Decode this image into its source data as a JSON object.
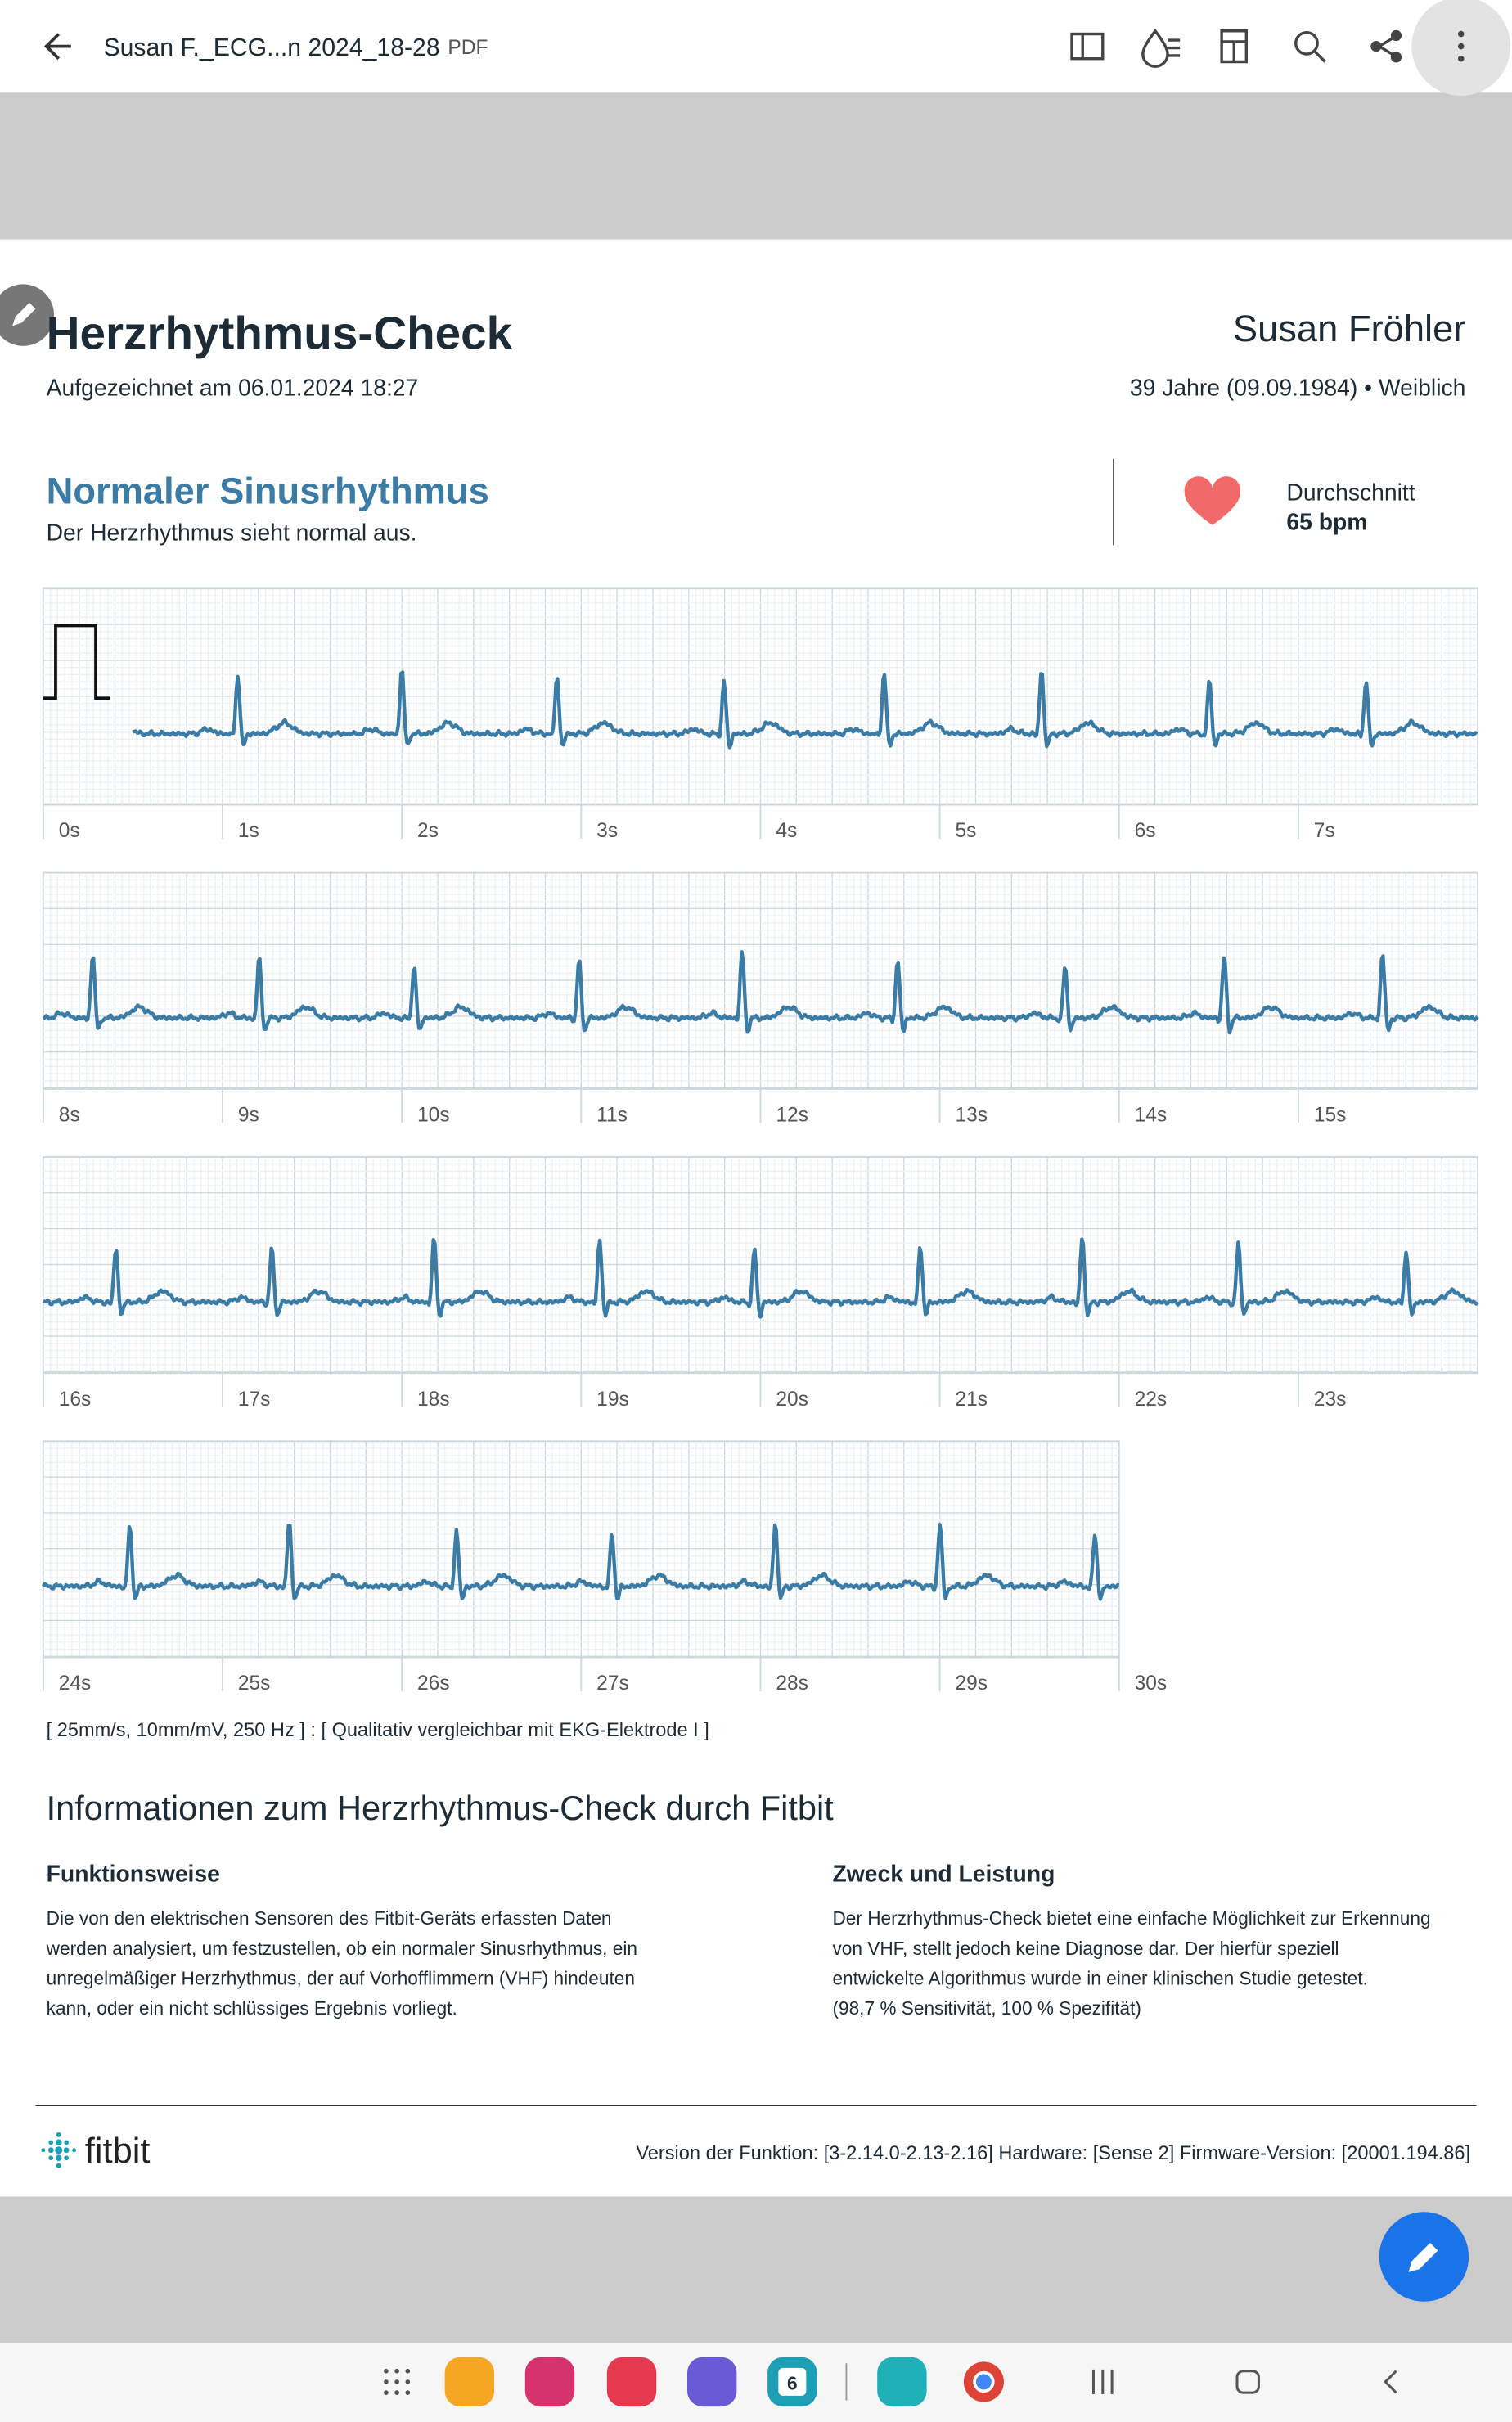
{
  "toolbar": {
    "title": "Susan F._ECG...n 2024_18-28",
    "badge": "PDF"
  },
  "report": {
    "title": "Herzrhythmus-Check",
    "recorded": "Aufgezeichnet am 06.01.2024 18:27",
    "patient_name": "Susan Fröhler",
    "patient_age": "39 Jahre (09.09.1984)",
    "patient_sex": "Weiblich",
    "result_title": "Normaler Sinusrhythmus",
    "result_text": "Der Herzrhythmus sieht normal aus.",
    "avg_label": "Durchschnitt",
    "avg_value": "65 bpm"
  },
  "strips": [
    {
      "labels": [
        "0s",
        "1s",
        "2s",
        "3s",
        "4s",
        "5s",
        "6s",
        "7s"
      ]
    },
    {
      "labels": [
        "8s",
        "9s",
        "10s",
        "11s",
        "12s",
        "13s",
        "14s",
        "15s"
      ]
    },
    {
      "labels": [
        "16s",
        "17s",
        "18s",
        "19s",
        "20s",
        "21s",
        "22s",
        "23s"
      ]
    },
    {
      "labels": [
        "24s",
        "25s",
        "26s",
        "27s",
        "28s",
        "29s",
        "30s"
      ]
    }
  ],
  "caption": "[ 25mm/s, 10mm/mV, 250 Hz ] : [ Qualitativ vergleichbar mit EKG-Elektrode I ]",
  "info": {
    "title": "Informationen zum Herzrhythmus-Check durch Fitbit",
    "sections": [
      {
        "heading": "Funktionsweise",
        "lines": [
          "Die von den elektrischen Sensoren des Fitbit-Geräts erfassten Daten",
          "werden analysiert, um festzustellen, ob ein normaler Sinusrhythmus, ein",
          "unregelmäßiger Herzrhythmus, der auf Vorhofflimmern (VHF) hindeuten",
          "kann, oder ein nicht schlüssiges Ergebnis vorliegt."
        ]
      },
      {
        "heading": "Zweck und Leistung",
        "lines": [
          "Der Herzrhythmus-Check bietet eine einfache Möglichkeit zur Erkennung",
          "von VHF, stellt jedoch keine Diagnose dar. Der hierfür speziell",
          "entwickelte Algorithmus wurde in einer klinischen Studie getestet.",
          "(98,7 % Sensitivität, 100 % Spezifität)"
        ]
      }
    ]
  },
  "footer": {
    "logo": "fitbit",
    "version": "Version der Funktion: [3-2.14.0-2.13-2.16] Hardware: [Sense 2] Firmware-Version: [20001.194.86]"
  },
  "dock": {
    "calendar_day": "6"
  }
}
